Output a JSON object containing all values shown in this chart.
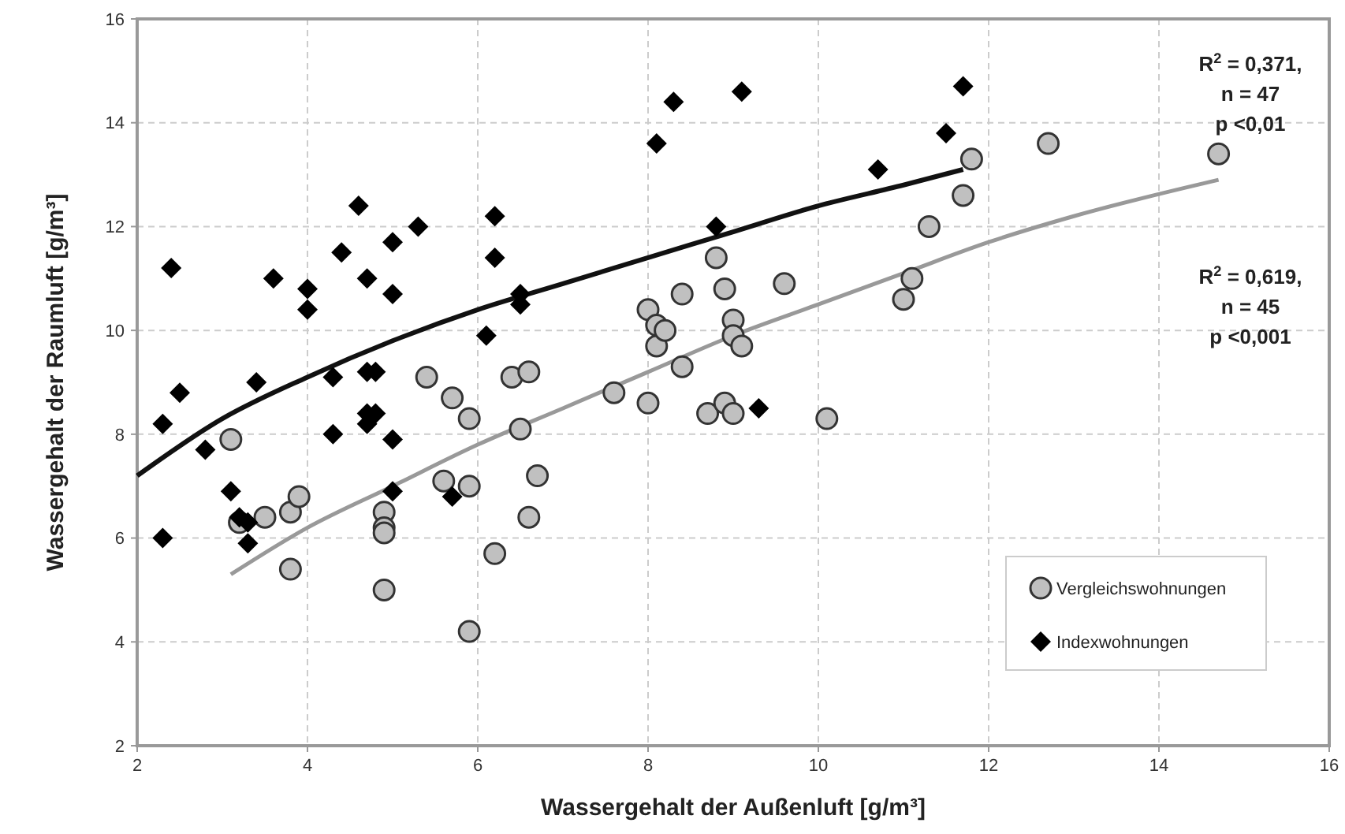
{
  "chart_data": {
    "type": "scatter",
    "xlabel": "Wassergehalt der Außenluft [g/m³]",
    "ylabel": "Wassergehalt der Raumluft [g/m³]",
    "xlim": [
      2,
      16
    ],
    "xticks": [
      2,
      4,
      6,
      8,
      10,
      12,
      14,
      16
    ],
    "ylim": [
      2,
      16
    ],
    "yticks": [
      2,
      4,
      6,
      8,
      10,
      12,
      14,
      16
    ],
    "grid": true,
    "legend": "bottom right",
    "annotations": [
      "R$^{2}$ = 0,371,\nn = 47\np <0,01",
      "R$^{2}$ = 0,619,\nn = 45\np <0,001"
    ],
    "series": [
      {
        "name": "Vergleichswohnungen",
        "type": "scatter",
        "marker": "circle",
        "color": "#c0c0c0",
        "x": [
          3.1,
          3.2,
          3.5,
          3.8,
          3.9,
          3.8,
          4.9,
          4.9,
          4.9,
          4.9,
          5.4,
          5.6,
          5.7,
          5.9,
          5.9,
          5.9,
          6.2,
          6.4,
          6.5,
          6.6,
          6.6,
          6.7,
          7.6,
          8.0,
          8.0,
          8.1,
          8.1,
          8.2,
          8.4,
          8.4,
          8.7,
          8.8,
          8.9,
          8.9,
          9.0,
          9.0,
          9.0,
          9.1,
          9.6,
          10.1,
          11.0,
          11.1,
          11.3,
          11.7,
          11.8,
          12.7,
          14.7
        ],
        "values": [
          7.9,
          6.3,
          6.4,
          6.5,
          6.8,
          5.4,
          6.5,
          6.2,
          6.1,
          5.0,
          9.1,
          7.1,
          8.7,
          8.3,
          7.0,
          4.2,
          5.7,
          9.1,
          8.1,
          9.2,
          6.4,
          7.2,
          8.8,
          10.4,
          8.6,
          10.1,
          9.7,
          10.0,
          10.7,
          9.3,
          8.4,
          11.4,
          10.8,
          8.6,
          10.2,
          9.9,
          8.4,
          9.7,
          10.9,
          8.3,
          10.6,
          11.0,
          12.0,
          12.6,
          13.3,
          13.6,
          13.4
        ]
      },
      {
        "name": "Indexwohnungen",
        "type": "scatter",
        "marker": "diamond",
        "color": "#000000",
        "x": [
          2.3,
          2.3,
          2.4,
          2.5,
          2.8,
          3.1,
          3.2,
          3.3,
          3.3,
          3.4,
          3.6,
          4.0,
          4.0,
          4.3,
          4.3,
          4.4,
          4.6,
          4.7,
          4.7,
          4.8,
          4.7,
          4.8,
          4.7,
          5.0,
          5.0,
          5.0,
          5.0,
          5.3,
          5.7,
          6.1,
          6.2,
          6.2,
          6.5,
          6.5,
          8.1,
          8.3,
          8.8,
          9.1,
          9.3,
          10.7,
          11.5,
          11.7
        ],
        "values": [
          8.2,
          6.0,
          11.2,
          8.8,
          7.7,
          6.9,
          6.4,
          6.3,
          5.9,
          9.0,
          11.0,
          10.8,
          10.4,
          9.1,
          8.0,
          11.5,
          12.4,
          11.0,
          9.2,
          9.2,
          8.4,
          8.4,
          8.2,
          11.7,
          10.7,
          7.9,
          6.9,
          12.0,
          6.8,
          9.9,
          12.2,
          11.4,
          10.7,
          10.5,
          13.6,
          14.4,
          12.0,
          14.6,
          8.5,
          13.1,
          13.8,
          14.7
        ]
      },
      {
        "type": "line",
        "line_style": "solid",
        "color": "#111111",
        "x": [
          2,
          3,
          4,
          5,
          6,
          7,
          8,
          9,
          10,
          11,
          11.7
        ],
        "values": [
          7.2,
          8.3,
          9.1,
          9.8,
          10.4,
          10.9,
          11.4,
          11.9,
          12.4,
          12.8,
          13.1
        ]
      },
      {
        "type": "line",
        "line_style": "solid",
        "color": "#999999",
        "x": [
          3.1,
          4,
          5,
          6,
          7,
          8,
          9,
          10,
          11,
          12,
          13,
          14.7
        ],
        "values": [
          5.3,
          6.2,
          7.0,
          7.8,
          8.5,
          9.2,
          9.9,
          10.5,
          11.1,
          11.7,
          12.2,
          12.9
        ]
      }
    ]
  }
}
